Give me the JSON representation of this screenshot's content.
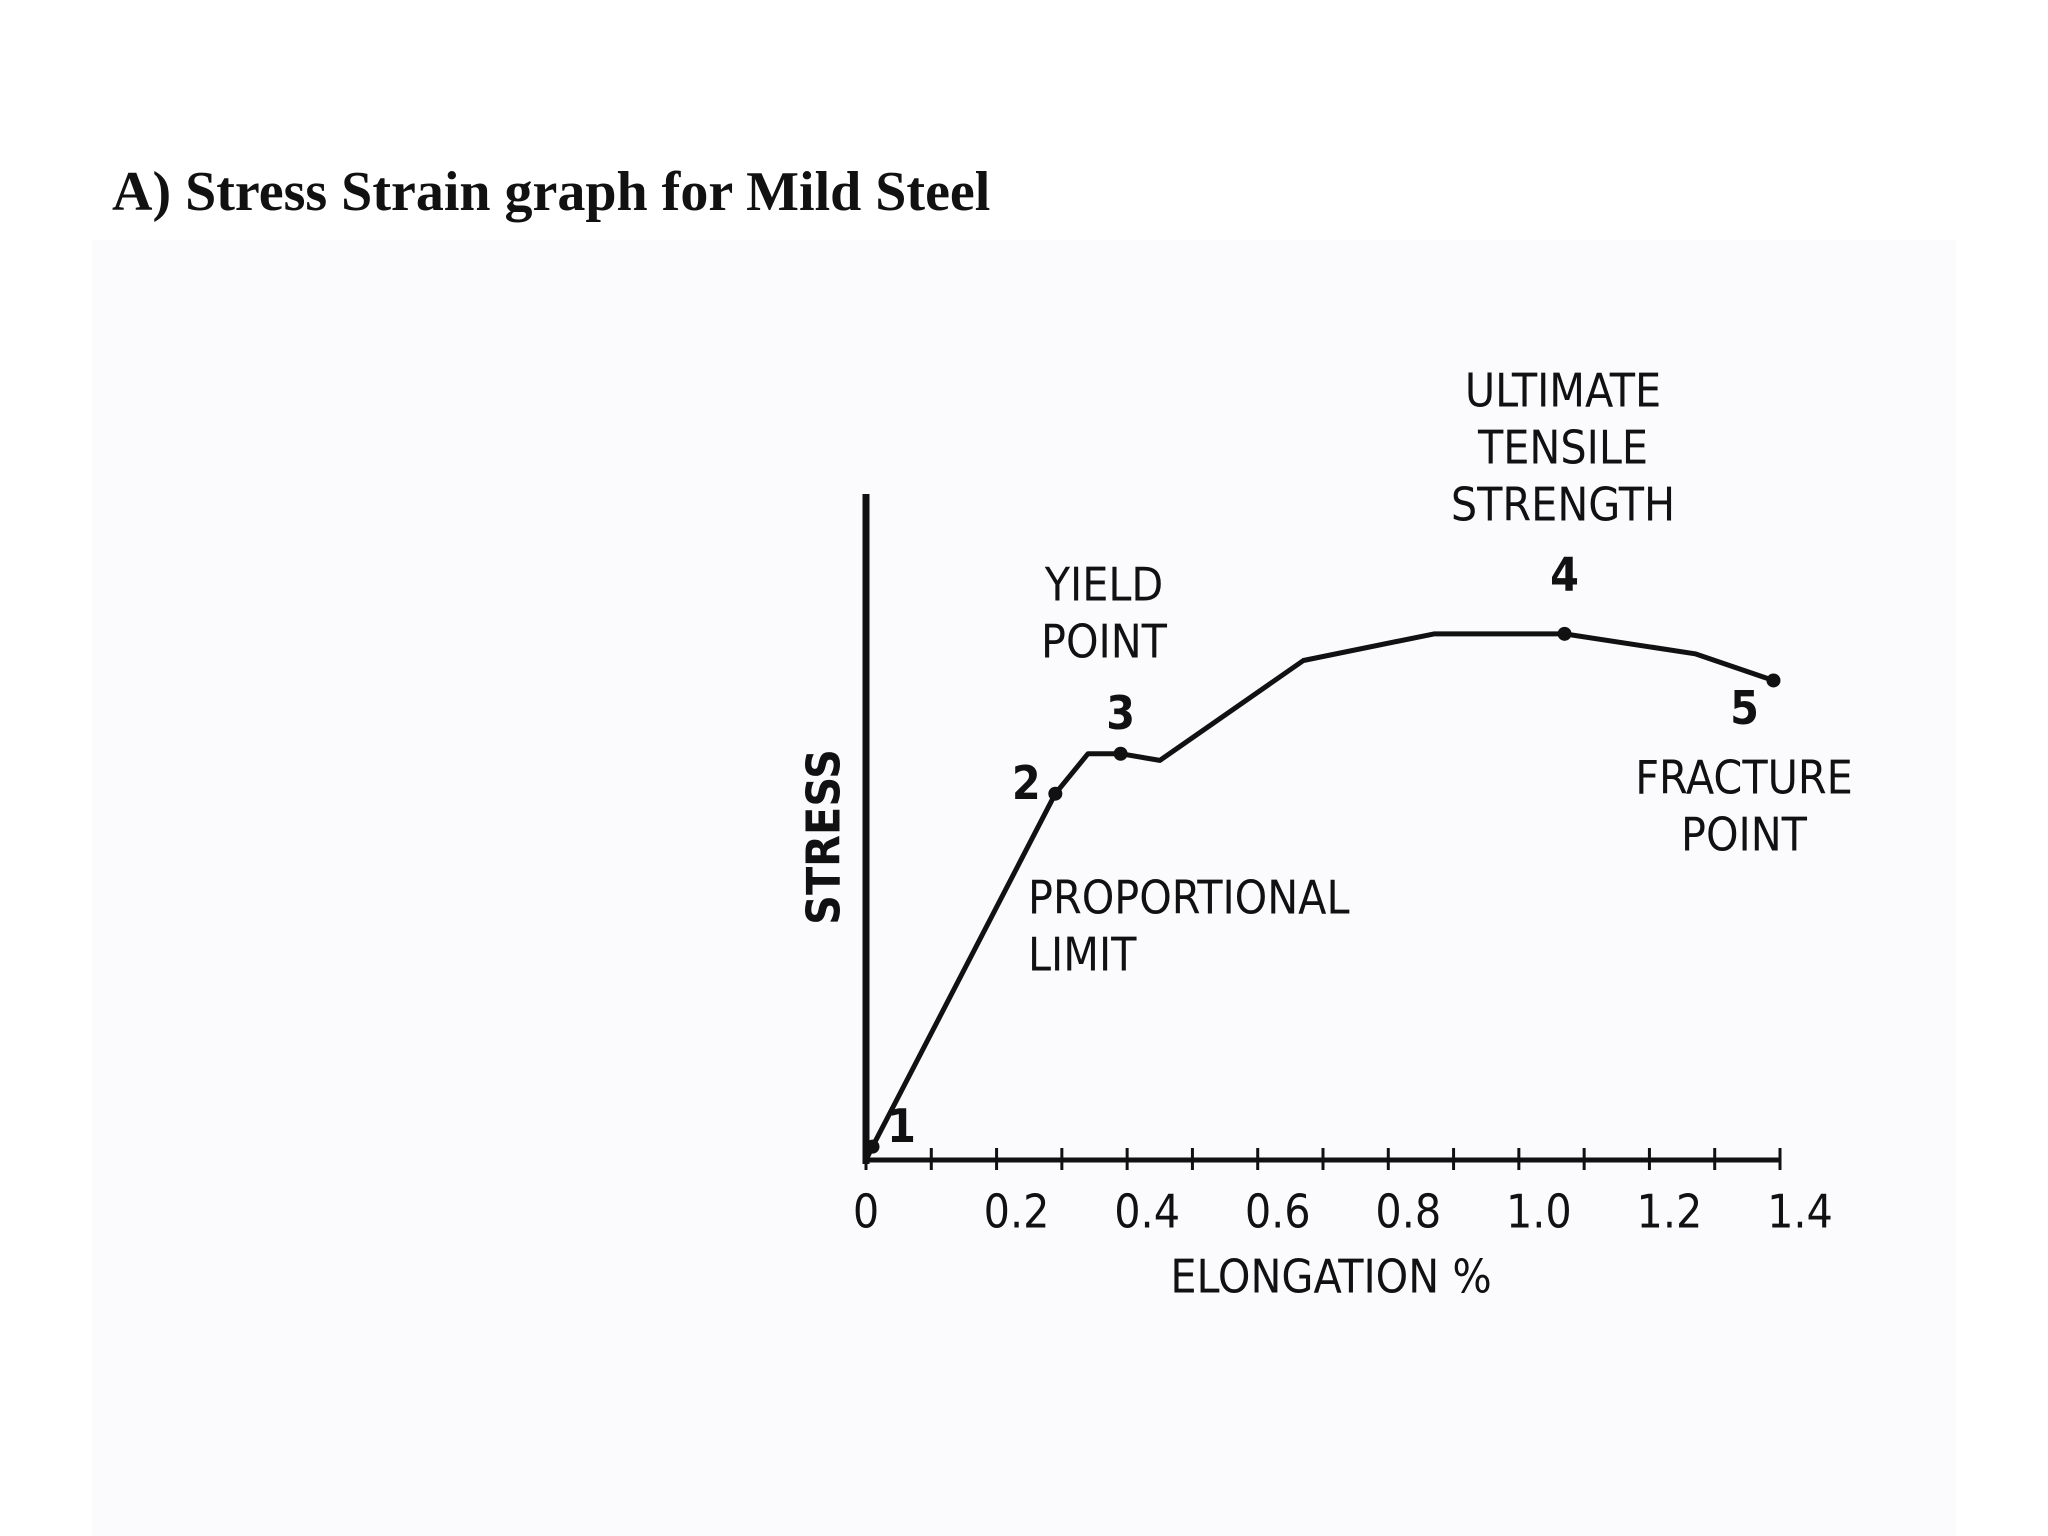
{
  "chart_data": {
    "type": "line",
    "title": "A) Stress Strain graph for Mild Steel",
    "x_label": "ELONGATION %",
    "y_label": "STRESS",
    "color": "#111111",
    "xlim": [
      0,
      1.4
    ],
    "ylim": [
      0,
      100
    ],
    "xticks": [
      0,
      0.2,
      0.4,
      0.6,
      0.8,
      {
        "value": 1,
        "label": "1.0"
      },
      1.2,
      1.4
    ],
    "xminor_ticks": [
      0.1,
      0.3,
      0.5,
      0.7,
      0.9,
      1.1,
      1.3
    ],
    "x": [
      0,
      0.01,
      0.29,
      0.34,
      0.39,
      0.45,
      0.67,
      0.87,
      1.07,
      1.27,
      1.39
    ],
    "values": [
      0,
      2,
      55,
      61,
      61,
      60,
      75,
      79,
      79,
      76,
      72
    ],
    "points": {
      "labels": [
        "1",
        "2",
        "3",
        "4",
        "5"
      ],
      "x": [
        0.01,
        0.29,
        0.39,
        1.07,
        1.39
      ],
      "y": [
        2,
        55,
        61,
        79,
        72
      ]
    },
    "annotations": [
      [
        "YIELD",
        "POINT"
      ],
      [
        "ULTIMATE",
        "TENSILE",
        "STRENGTH"
      ],
      [
        "PROPORTIONAL",
        "LIMIT"
      ],
      [
        "FRACTURE",
        "POINT"
      ]
    ]
  }
}
